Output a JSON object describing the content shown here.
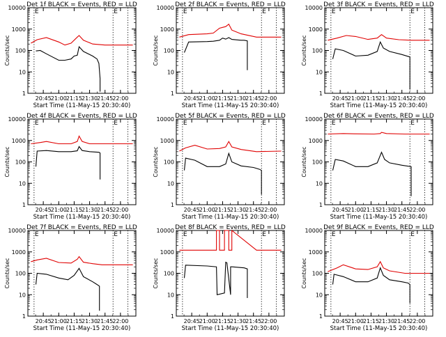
{
  "figure": {
    "x_title": "Start Time (11-May-15 20:30:40)",
    "y_title": "Counts/sec",
    "xticks": [
      "20:45",
      "21:00",
      "21:15",
      "21:30",
      "21:45",
      "22:00"
    ],
    "yticks": [
      "1",
      "10",
      "100",
      "1000",
      "10000"
    ],
    "colors": {
      "events": "#000000",
      "lld": "#e00000"
    }
  },
  "chart_data": [
    {
      "type": "line",
      "title": "Det 1f BLACK = Events, RED = LLD",
      "marker": "E",
      "ylim": [
        1,
        10000
      ],
      "xlim": [
        20.5,
        22.25
      ],
      "series": [
        {
          "name": "Events",
          "color": "#000000",
          "x": [
            20.63,
            20.7,
            20.8,
            21.0,
            21.1,
            21.2,
            21.25,
            21.3,
            21.33,
            21.4,
            21.55,
            21.62,
            21.65,
            21.67,
            21.67
          ],
          "y": [
            95,
            100,
            70,
            35,
            35,
            40,
            55,
            60,
            150,
            90,
            55,
            40,
            25,
            5,
            1.2
          ]
        },
        {
          "name": "LLD",
          "color": "#e00000",
          "x": [
            20.55,
            20.65,
            20.8,
            21.0,
            21.1,
            21.2,
            21.3,
            21.33,
            21.4,
            21.55,
            21.75,
            22.2
          ],
          "y": [
            220,
            320,
            400,
            250,
            180,
            220,
            420,
            500,
            300,
            200,
            180,
            180
          ]
        }
      ]
    },
    {
      "type": "line",
      "title": "Det 2f BLACK = Events, RED = LLD",
      "marker": "E",
      "ylim": [
        1,
        10000
      ],
      "xlim": [
        20.5,
        22.25
      ],
      "series": [
        {
          "name": "Events",
          "color": "#000000",
          "x": [
            20.63,
            20.7,
            21.0,
            21.1,
            21.2,
            21.25,
            21.3,
            21.35,
            21.4,
            21.5,
            21.55,
            21.6,
            21.65,
            21.65
          ],
          "y": [
            80,
            250,
            260,
            270,
            300,
            380,
            340,
            400,
            330,
            310,
            300,
            300,
            280,
            12
          ]
        },
        {
          "name": "LLD",
          "color": "#e00000",
          "x": [
            20.55,
            20.7,
            21.0,
            21.1,
            21.2,
            21.25,
            21.3,
            21.35,
            21.4,
            21.55,
            21.8,
            22.2
          ],
          "y": [
            420,
            550,
            600,
            650,
            1100,
            1200,
            1300,
            1700,
            900,
            600,
            420,
            420
          ]
        }
      ]
    },
    {
      "type": "line",
      "title": "Det 3f BLACK = Events, RED = LLD",
      "marker": "E",
      "ylim": [
        1,
        10000
      ],
      "xlim": [
        20.5,
        22.25
      ],
      "series": [
        {
          "name": "Events",
          "color": "#000000",
          "x": [
            20.63,
            20.67,
            20.8,
            21.0,
            21.2,
            21.35,
            21.4,
            21.45,
            21.55,
            21.75,
            21.88,
            21.88
          ],
          "y": [
            40,
            120,
            100,
            55,
            60,
            90,
            250,
            130,
            90,
            65,
            50,
            1.5
          ]
        },
        {
          "name": "LLD",
          "color": "#e00000",
          "x": [
            20.55,
            20.7,
            20.85,
            21.0,
            21.2,
            21.35,
            21.42,
            21.5,
            21.7,
            21.9,
            22.2
          ],
          "y": [
            300,
            380,
            500,
            450,
            330,
            380,
            550,
            380,
            320,
            300,
            300
          ]
        }
      ]
    },
    {
      "type": "line",
      "title": "Det 4f BLACK = Events, RED = LLD",
      "marker": "E",
      "ylim": [
        1,
        10000
      ],
      "xlim": [
        20.5,
        22.25
      ],
      "series": [
        {
          "name": "Events",
          "color": "#000000",
          "x": [
            20.63,
            20.65,
            20.8,
            21.0,
            21.2,
            21.3,
            21.33,
            21.38,
            21.5,
            21.65,
            21.67,
            21.67
          ],
          "y": [
            60,
            320,
            340,
            300,
            300,
            330,
            520,
            340,
            300,
            280,
            260,
            15
          ]
        },
        {
          "name": "LLD",
          "color": "#e00000",
          "x": [
            20.55,
            20.7,
            20.8,
            21.0,
            21.2,
            21.3,
            21.33,
            21.38,
            21.5,
            21.7,
            22.2
          ],
          "y": [
            700,
            800,
            900,
            700,
            700,
            900,
            1600,
            900,
            700,
            700,
            700
          ]
        }
      ]
    },
    {
      "type": "line",
      "title": "Det 5f BLACK = Events, RED = LLD",
      "marker": "E",
      "ylim": [
        1,
        10000
      ],
      "xlim": [
        20.5,
        22.25
      ],
      "series": [
        {
          "name": "Events",
          "color": "#000000",
          "x": [
            20.63,
            20.65,
            20.8,
            21.0,
            21.2,
            21.3,
            21.35,
            21.4,
            21.55,
            21.75,
            21.85,
            21.88,
            21.88
          ],
          "y": [
            40,
            150,
            120,
            60,
            60,
            80,
            250,
            100,
            65,
            55,
            45,
            40,
            3
          ]
        },
        {
          "name": "LLD",
          "color": "#e00000",
          "x": [
            20.55,
            20.65,
            20.8,
            21.0,
            21.2,
            21.3,
            21.35,
            21.4,
            21.55,
            21.8,
            22.2
          ],
          "y": [
            320,
            450,
            600,
            400,
            420,
            500,
            900,
            500,
            380,
            300,
            320
          ]
        }
      ]
    },
    {
      "type": "line",
      "title": "Det 6f BLACK = Events, RED = LLD",
      "marker": "E",
      "ylim": [
        1,
        10000
      ],
      "xlim": [
        20.5,
        22.25
      ],
      "series": [
        {
          "name": "Events",
          "color": "#000000",
          "x": [
            20.63,
            20.67,
            20.8,
            21.0,
            21.2,
            21.35,
            21.42,
            21.47,
            21.55,
            21.75,
            21.9,
            21.9
          ],
          "y": [
            40,
            130,
            110,
            60,
            60,
            90,
            280,
            130,
            90,
            70,
            60,
            2.5
          ]
        },
        {
          "name": "LLD",
          "color": "#e00000",
          "x": [
            20.55,
            20.8,
            21.0,
            21.3,
            21.4,
            21.42,
            21.5,
            21.8,
            22.2
          ],
          "y": [
            2000,
            2100,
            2050,
            2000,
            2100,
            2400,
            2100,
            2000,
            2000
          ]
        }
      ]
    },
    {
      "type": "line",
      "title": "Det 7f BLACK = Events, RED = LLD",
      "marker": "E",
      "ylim": [
        1,
        10000
      ],
      "xlim": [
        20.5,
        22.25
      ],
      "series": [
        {
          "name": "Events",
          "color": "#000000",
          "x": [
            20.63,
            20.65,
            20.8,
            21.0,
            21.15,
            21.25,
            21.33,
            21.4,
            21.55,
            21.62,
            21.66,
            21.66
          ],
          "y": [
            30,
            100,
            90,
            60,
            50,
            80,
            170,
            70,
            40,
            30,
            25,
            1.8
          ]
        },
        {
          "name": "LLD",
          "color": "#e00000",
          "x": [
            20.55,
            20.65,
            20.8,
            21.0,
            21.2,
            21.3,
            21.33,
            21.4,
            21.55,
            21.7,
            22.2
          ],
          "y": [
            350,
            420,
            500,
            320,
            300,
            450,
            600,
            330,
            280,
            250,
            250
          ]
        }
      ]
    },
    {
      "type": "line",
      "title": "Det 8f BLACK = Events, RED = LLD",
      "marker": "E",
      "ylim": [
        1,
        10000
      ],
      "xlim": [
        20.5,
        22.25
      ],
      "series": [
        {
          "name": "Events",
          "color": "#000000",
          "x": [
            20.63,
            20.65,
            21.0,
            21.15,
            21.16,
            21.16,
            21.28,
            21.3,
            21.32,
            21.38,
            21.38,
            21.4,
            21.6,
            21.65,
            21.65
          ],
          "y": [
            60,
            240,
            220,
            200,
            12,
            10,
            12,
            330,
            310,
            10,
            200,
            200,
            180,
            160,
            7
          ]
        },
        {
          "name": "LLD",
          "color": "#e00000",
          "x": [
            20.55,
            21.15,
            21.15,
            21.2,
            21.2,
            21.28,
            21.28,
            21.35,
            21.35,
            21.4,
            21.4,
            21.8,
            22.2
          ],
          "y": [
            1200,
            1200,
            10000,
            10000,
            1200,
            1200,
            10000,
            10000,
            1200,
            1200,
            10000,
            1200,
            1200
          ]
        }
      ]
    },
    {
      "type": "line",
      "title": "Det 9f BLACK = Events, RED = LLD",
      "marker": "E",
      "ylim": [
        1,
        10000
      ],
      "xlim": [
        20.5,
        22.25
      ],
      "series": [
        {
          "name": "Events",
          "color": "#000000",
          "x": [
            20.63,
            20.65,
            20.8,
            21.0,
            21.2,
            21.35,
            21.4,
            21.45,
            21.55,
            21.75,
            21.85,
            21.88,
            21.88
          ],
          "y": [
            30,
            90,
            70,
            40,
            40,
            60,
            180,
            80,
            50,
            40,
            35,
            30,
            4
          ]
        },
        {
          "name": "LLD",
          "color": "#e00000",
          "x": [
            20.55,
            20.7,
            20.8,
            21.0,
            21.2,
            21.35,
            21.4,
            21.45,
            21.55,
            21.8,
            22.2
          ],
          "y": [
            120,
            180,
            250,
            160,
            150,
            200,
            350,
            180,
            130,
            100,
            100
          ]
        }
      ]
    }
  ]
}
